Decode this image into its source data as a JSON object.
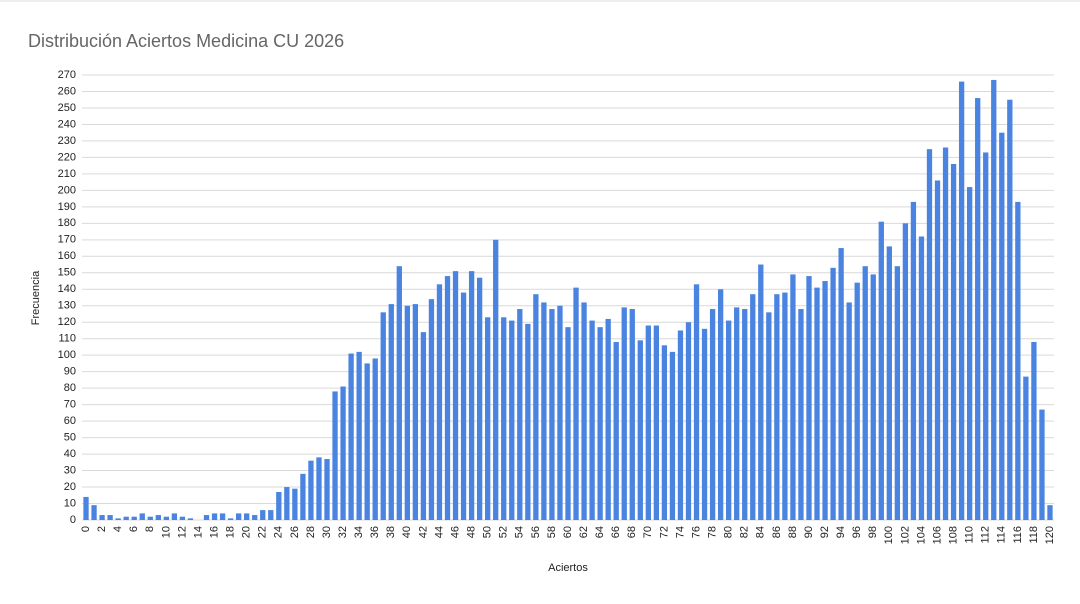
{
  "chart_data": {
    "type": "bar",
    "title": "Distribución Aciertos Medicina CU 2026",
    "x_label": "Aciertos",
    "y_label": "Frecuencia",
    "color": "#4a84e0",
    "grid": true,
    "categories": [
      "0",
      null,
      "2",
      null,
      "4",
      null,
      "6",
      null,
      "8",
      null,
      "10",
      null,
      "12",
      null,
      "14",
      null,
      "16",
      null,
      "18",
      null,
      "20",
      null,
      "22",
      null,
      "24",
      null,
      "26",
      null,
      "28",
      null,
      "30",
      null,
      "32",
      null,
      "34",
      null,
      "36",
      null,
      "38",
      null,
      "40",
      null,
      "42",
      null,
      "44",
      null,
      "46",
      null,
      "48",
      null,
      "50",
      null,
      "52",
      null,
      "54",
      null,
      "56",
      null,
      "58",
      null,
      "60",
      null,
      "62",
      null,
      "64",
      null,
      "66",
      null,
      "68",
      null,
      "70",
      null,
      "72",
      null,
      "74",
      null,
      "76",
      null,
      "78",
      null,
      "80",
      null,
      "82",
      null,
      "84",
      null,
      "86",
      null,
      "88",
      null,
      "90",
      null,
      "92",
      null,
      "94",
      null,
      "96",
      null,
      "98",
      null,
      "100",
      null,
      "102",
      null,
      "104",
      null,
      "106",
      null,
      "108",
      null,
      "110",
      null,
      "112",
      null,
      "114",
      null,
      "116",
      null,
      "118",
      null,
      "120"
    ],
    "values": [
      14,
      9,
      3,
      3,
      1,
      2,
      2,
      4,
      2,
      3,
      2,
      4,
      2,
      1,
      0,
      3,
      4,
      4,
      1,
      4,
      4,
      3,
      6,
      6,
      17,
      20,
      19,
      28,
      36,
      38,
      37,
      78,
      81,
      101,
      102,
      95,
      98,
      126,
      131,
      154,
      130,
      131,
      114,
      134,
      143,
      148,
      151,
      138,
      151,
      147,
      123,
      170,
      123,
      121,
      128,
      119,
      137,
      132,
      128,
      130,
      117,
      141,
      132,
      121,
      117,
      122,
      108,
      129,
      128,
      109,
      118,
      118,
      106,
      102,
      115,
      120,
      143,
      116,
      128,
      140,
      121,
      129,
      128,
      137,
      155,
      126,
      137,
      138,
      149,
      128,
      148,
      141,
      145,
      153,
      165,
      132,
      144,
      154,
      149,
      181,
      166,
      154,
      180,
      193,
      172,
      225,
      206,
      226,
      216,
      266,
      202,
      256,
      223,
      267,
      235,
      255,
      193,
      87,
      108,
      67,
      9
    ],
    "ylim": [
      0,
      270
    ],
    "yticks": [
      0,
      10,
      20,
      30,
      40,
      50,
      60,
      70,
      80,
      90,
      100,
      110,
      120,
      130,
      140,
      150,
      160,
      170,
      180,
      190,
      200,
      210,
      220,
      230,
      240,
      250,
      260,
      270
    ]
  }
}
